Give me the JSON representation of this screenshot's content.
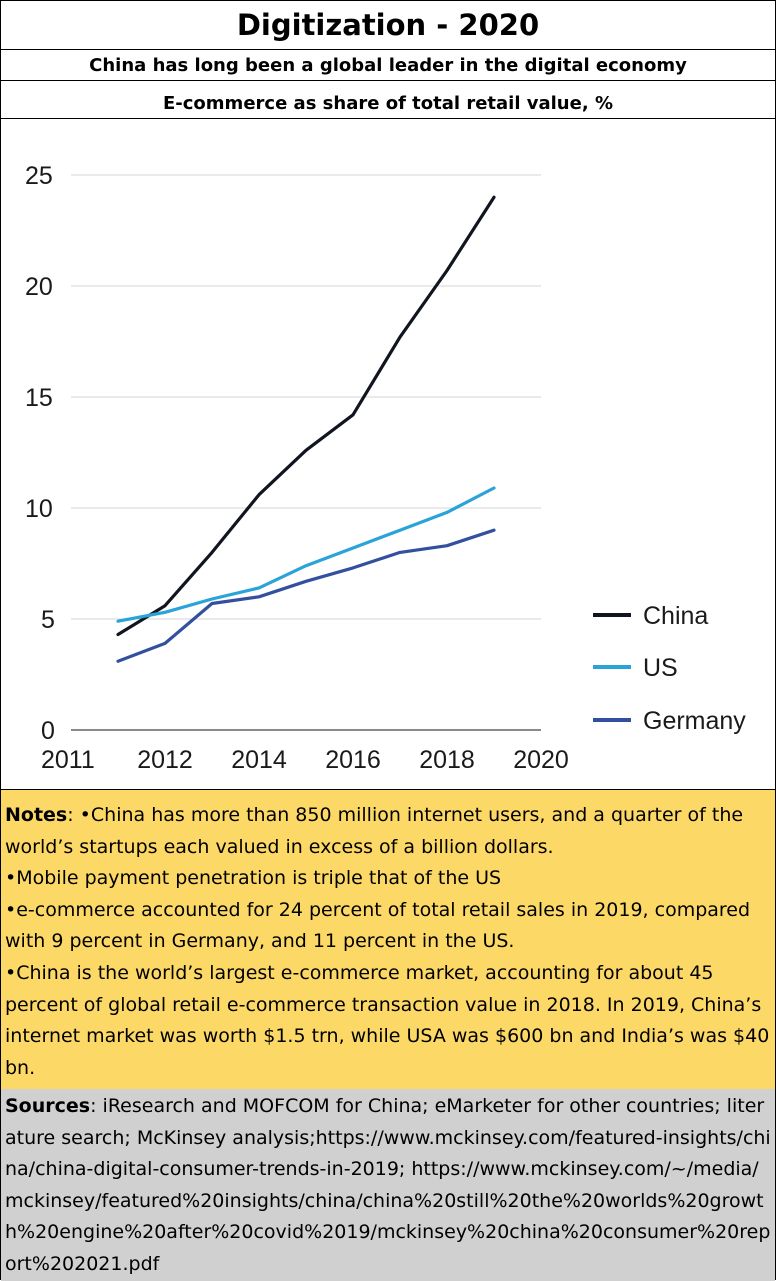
{
  "header": {
    "title": "Digitization - 2020",
    "subtitle": "China has long been a global leader in the digital economy"
  },
  "chart_data": {
    "type": "line",
    "title": "E-commerce as share of total retail value, %",
    "xlabel": "",
    "ylabel": "",
    "x": [
      2011,
      2012,
      2013,
      2014,
      2015,
      2016,
      2017,
      2018,
      2019
    ],
    "xlim": [
      2010,
      2020
    ],
    "ylim": [
      0,
      25
    ],
    "x_ticks": [
      "2011",
      "2012",
      "2014",
      "2016",
      "2018",
      "2020"
    ],
    "y_ticks": [
      "0",
      "5",
      "10",
      "15",
      "20",
      "25"
    ],
    "grid": true,
    "legend_position": "right",
    "series": [
      {
        "name": "China",
        "color": "#10151f",
        "values": [
          4.3,
          5.6,
          8.0,
          10.6,
          12.6,
          14.2,
          17.7,
          20.7,
          24.0
        ]
      },
      {
        "name": "US",
        "color": "#2aa3d8",
        "values": [
          4.9,
          5.3,
          5.9,
          6.4,
          7.4,
          8.2,
          9.0,
          9.8,
          10.9
        ]
      },
      {
        "name": "Germany",
        "color": "#32509e",
        "values": [
          3.1,
          3.9,
          5.7,
          6.0,
          6.7,
          7.3,
          8.0,
          8.3,
          9.0
        ]
      }
    ]
  },
  "notes": {
    "label": "Notes",
    "line1": ": •China has more than 850 million internet users, and a quarter of the world’s startups each valued in excess of a billion dollars.",
    "line2": "•Mobile payment penetration is triple that of the US",
    "line3": "•e-commerce accounted for 24 percent of total retail sales in 2019, compared with 9 percent in Germany, and 11 percent in the US.",
    "line4": "•China is the world’s largest e-commerce market, accounting for about 45 percent of global retail e-commerce transaction value in 2018. In 2019, China’s internet market was worth $1.5 trn, while USA  was $600 bn and India’s was $40 bn."
  },
  "sources": {
    "label": "Sources",
    "text": ": iResearch and MOFCOM for China; eMarketer for other countries; literature search; McKinsey analysis;https://www.mckinsey.com/featured-insights/china/china-digital-consumer-trends-in-2019; https://www.mckinsey.com/~/media/mckinsey/featured%20insights/china/china%20still%20the%20worlds%20growth%20engine%20after%20covid%2019/mckinsey%20china%20consumer%20report%202021.pdf"
  }
}
